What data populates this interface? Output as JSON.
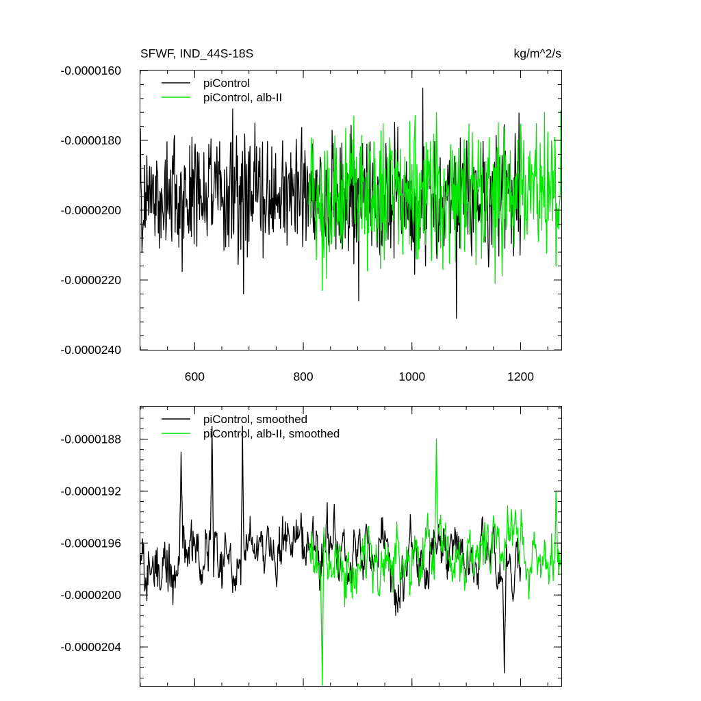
{
  "chart_data": [
    {
      "type": "line",
      "title": "SFWF, IND_44S-18S",
      "units": "kg/m^2/s",
      "xlim": [
        500,
        1275
      ],
      "ylim": [
        -2.4e-05,
        -1.6e-05
      ],
      "x_ticks": [
        600,
        800,
        1000,
        1200
      ],
      "x_tick_labels": [
        "600",
        "800",
        "1000",
        "1200"
      ],
      "y_ticks": [
        -1.6e-05,
        -1.8e-05,
        -2e-05,
        -2.2e-05,
        -2.4e-05
      ],
      "y_tick_labels": [
        "-0.0000160",
        "-0.0000180",
        "-0.0000200",
        "-0.0000220",
        "-0.0000240"
      ],
      "legend_position": "top-left",
      "series": [
        {
          "name": "piControl",
          "color": "#000000",
          "x_start": 500,
          "x_end": 1200,
          "mean": -1.96e-05,
          "amplitude": 1.1e-06,
          "extremes": [
            [
              670,
              -1.71e-05
            ],
            [
              690,
              -2.24e-05
            ],
            [
              902,
              -2.26e-05
            ],
            [
              1020,
              -1.65e-05
            ],
            [
              1082,
              -2.31e-05
            ]
          ]
        },
        {
          "name": "piControl, alb-II",
          "color": "#00e600",
          "x_start": 810,
          "x_end": 1275,
          "mean": -1.95e-05,
          "amplitude": 1.2e-06,
          "extremes": [
            [
              835,
              -2.23e-05
            ],
            [
              1045,
              -1.72e-05
            ],
            [
              1265,
              -2.16e-05
            ]
          ]
        }
      ]
    },
    {
      "type": "line",
      "xlim": [
        500,
        1275
      ],
      "ylim": [
        -2.07e-05,
        -1.855e-05
      ],
      "x_ticks": [
        600,
        800,
        1000,
        1200
      ],
      "y_ticks": [
        -1.88e-05,
        -1.92e-05,
        -1.96e-05,
        -2e-05,
        -2.04e-05
      ],
      "y_tick_labels": [
        "-0.0000188",
        "-0.0000192",
        "-0.0000196",
        "-0.0000200",
        "-0.0000204"
      ],
      "legend_position": "top-left",
      "series": [
        {
          "name": "piControl, smoothed",
          "color": "#000000",
          "x_start": 500,
          "x_end": 1200,
          "mean": -1.97e-05,
          "amplitude": 2.8e-07,
          "extremes": [
            [
              575,
              -1.89e-05
            ],
            [
              632,
              -1.87e-05
            ],
            [
              688,
              -1.87e-05
            ],
            [
              1170,
              -2.06e-05
            ]
          ]
        },
        {
          "name": "piControl, alb-II, smoothed",
          "color": "#00e600",
          "x_start": 810,
          "x_end": 1275,
          "mean": -1.97e-05,
          "amplitude": 3e-07,
          "extremes": [
            [
              835,
              -2.07e-05
            ],
            [
              1045,
              -1.88e-05
            ],
            [
              1265,
              -1.92e-05
            ]
          ]
        }
      ]
    }
  ]
}
